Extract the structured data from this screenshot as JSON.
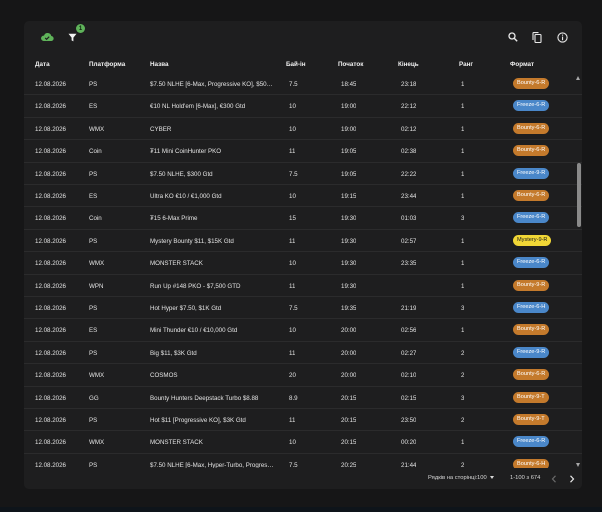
{
  "toolbar": {
    "left_icons": [
      "cloud-sync-icon",
      "filter-icon"
    ],
    "filter_badge": "1",
    "right_icons": [
      "search-icon",
      "copy-icon",
      "info-icon"
    ]
  },
  "columns": {
    "date": "Дата",
    "platform": "Платформа",
    "name": "Назва",
    "buyin": "Бай-ін",
    "start": "Початок",
    "end": "Кінець",
    "rank": "Ранг",
    "format": "Формат"
  },
  "rows": [
    {
      "date": "12.08.2026",
      "platform": "PS",
      "name": "$7.50 NLHE [6-Max, Progressive KO], $500 …",
      "buyin": "7.5",
      "start": "18:45",
      "end": "23:18",
      "rank": "1",
      "format": "Bounty-6-R",
      "fmt_type": "bounty"
    },
    {
      "date": "12.08.2026",
      "platform": "ES",
      "name": "€10 NL Hold'em [6-Max], €300 Gtd",
      "buyin": "10",
      "start": "19:00",
      "end": "22:12",
      "rank": "1",
      "format": "Freeze-6-R",
      "fmt_type": "freeze"
    },
    {
      "date": "12.08.2026",
      "platform": "WMX",
      "name": "CYBER",
      "buyin": "10",
      "start": "19:00",
      "end": "02:12",
      "rank": "1",
      "format": "Bounty-6-R",
      "fmt_type": "bounty"
    },
    {
      "date": "12.08.2026",
      "platform": "Coin",
      "name": "₮11 Mini CoinHunter PKO",
      "buyin": "11",
      "start": "19:05",
      "end": "02:38",
      "rank": "1",
      "format": "Bounty-6-R",
      "fmt_type": "bounty"
    },
    {
      "date": "12.08.2026",
      "platform": "PS",
      "name": "$7.50 NLHE, $300 Gtd",
      "buyin": "7.5",
      "start": "19:05",
      "end": "22:22",
      "rank": "1",
      "format": "Freeze-9-R",
      "fmt_type": "freeze"
    },
    {
      "date": "12.08.2026",
      "platform": "ES",
      "name": "Ultra KO €10 / €1,000 Gtd",
      "buyin": "10",
      "start": "19:15",
      "end": "23:44",
      "rank": "1",
      "format": "Bounty-6-R",
      "fmt_type": "bounty"
    },
    {
      "date": "12.08.2026",
      "platform": "Coin",
      "name": "₮15 6-Max Prime",
      "buyin": "15",
      "start": "19:30",
      "end": "01:03",
      "rank": "3",
      "format": "Freeze-6-R",
      "fmt_type": "freeze"
    },
    {
      "date": "12.08.2026",
      "platform": "PS",
      "name": "Mystery Bounty $11, $15K Gtd",
      "buyin": "11",
      "start": "19:30",
      "end": "02:57",
      "rank": "1",
      "format": "Mystery-9-R",
      "fmt_type": "mystery"
    },
    {
      "date": "12.08.2026",
      "platform": "WMX",
      "name": "MONSTER STACK",
      "buyin": "10",
      "start": "19:30",
      "end": "23:35",
      "rank": "1",
      "format": "Freeze-6-R",
      "fmt_type": "freeze"
    },
    {
      "date": "12.08.2026",
      "platform": "WPN",
      "name": "Run Up #148 PKO - $7,500 GTD",
      "buyin": "11",
      "start": "19:30",
      "end": "",
      "rank": "1",
      "format": "Bounty-9-R",
      "fmt_type": "bounty"
    },
    {
      "date": "12.08.2026",
      "platform": "PS",
      "name": "Hot Hyper $7.50, $1K Gtd",
      "buyin": "7.5",
      "start": "19:35",
      "end": "21:19",
      "rank": "3",
      "format": "Freeze-6-H",
      "fmt_type": "freeze"
    },
    {
      "date": "12.08.2026",
      "platform": "ES",
      "name": "Mini Thunder €10 / €10,000 Gtd",
      "buyin": "10",
      "start": "20:00",
      "end": "02:56",
      "rank": "1",
      "format": "Bounty-9-R",
      "fmt_type": "bounty"
    },
    {
      "date": "12.08.2026",
      "platform": "PS",
      "name": "Big $11, $3K Gtd",
      "buyin": "11",
      "start": "20:00",
      "end": "02:27",
      "rank": "2",
      "format": "Freeze-9-R",
      "fmt_type": "freeze"
    },
    {
      "date": "12.08.2026",
      "platform": "WMX",
      "name": "COSMOS",
      "buyin": "20",
      "start": "20:00",
      "end": "02:10",
      "rank": "2",
      "format": "Bounty-6-R",
      "fmt_type": "bounty"
    },
    {
      "date": "12.08.2026",
      "platform": "GG",
      "name": "Bounty Hunters Deepstack Turbo $8.88",
      "buyin": "8.9",
      "start": "20:15",
      "end": "02:15",
      "rank": "3",
      "format": "Bounty-9-T",
      "fmt_type": "bounty"
    },
    {
      "date": "12.08.2026",
      "platform": "PS",
      "name": "Hot $11 [Progressive KO], $3K Gtd",
      "buyin": "11",
      "start": "20:15",
      "end": "23:50",
      "rank": "2",
      "format": "Bounty-9-T",
      "fmt_type": "bounty"
    },
    {
      "date": "12.08.2026",
      "platform": "WMX",
      "name": "MONSTER STACK",
      "buyin": "10",
      "start": "20:15",
      "end": "00:20",
      "rank": "1",
      "format": "Freeze-6-R",
      "fmt_type": "freeze"
    },
    {
      "date": "12.08.2026",
      "platform": "PS",
      "name": "$7.50 NLHE [6-Max, Hyper-Turbo, Progressi…",
      "buyin": "7.5",
      "start": "20:25",
      "end": "21:44",
      "rank": "2",
      "format": "Bounty-6-H",
      "fmt_type": "bounty"
    }
  ],
  "footer": {
    "rows_per_page_label": "Рядків на сторінці:",
    "rows_per_page_value": "100",
    "range": "1-100 з 674"
  }
}
